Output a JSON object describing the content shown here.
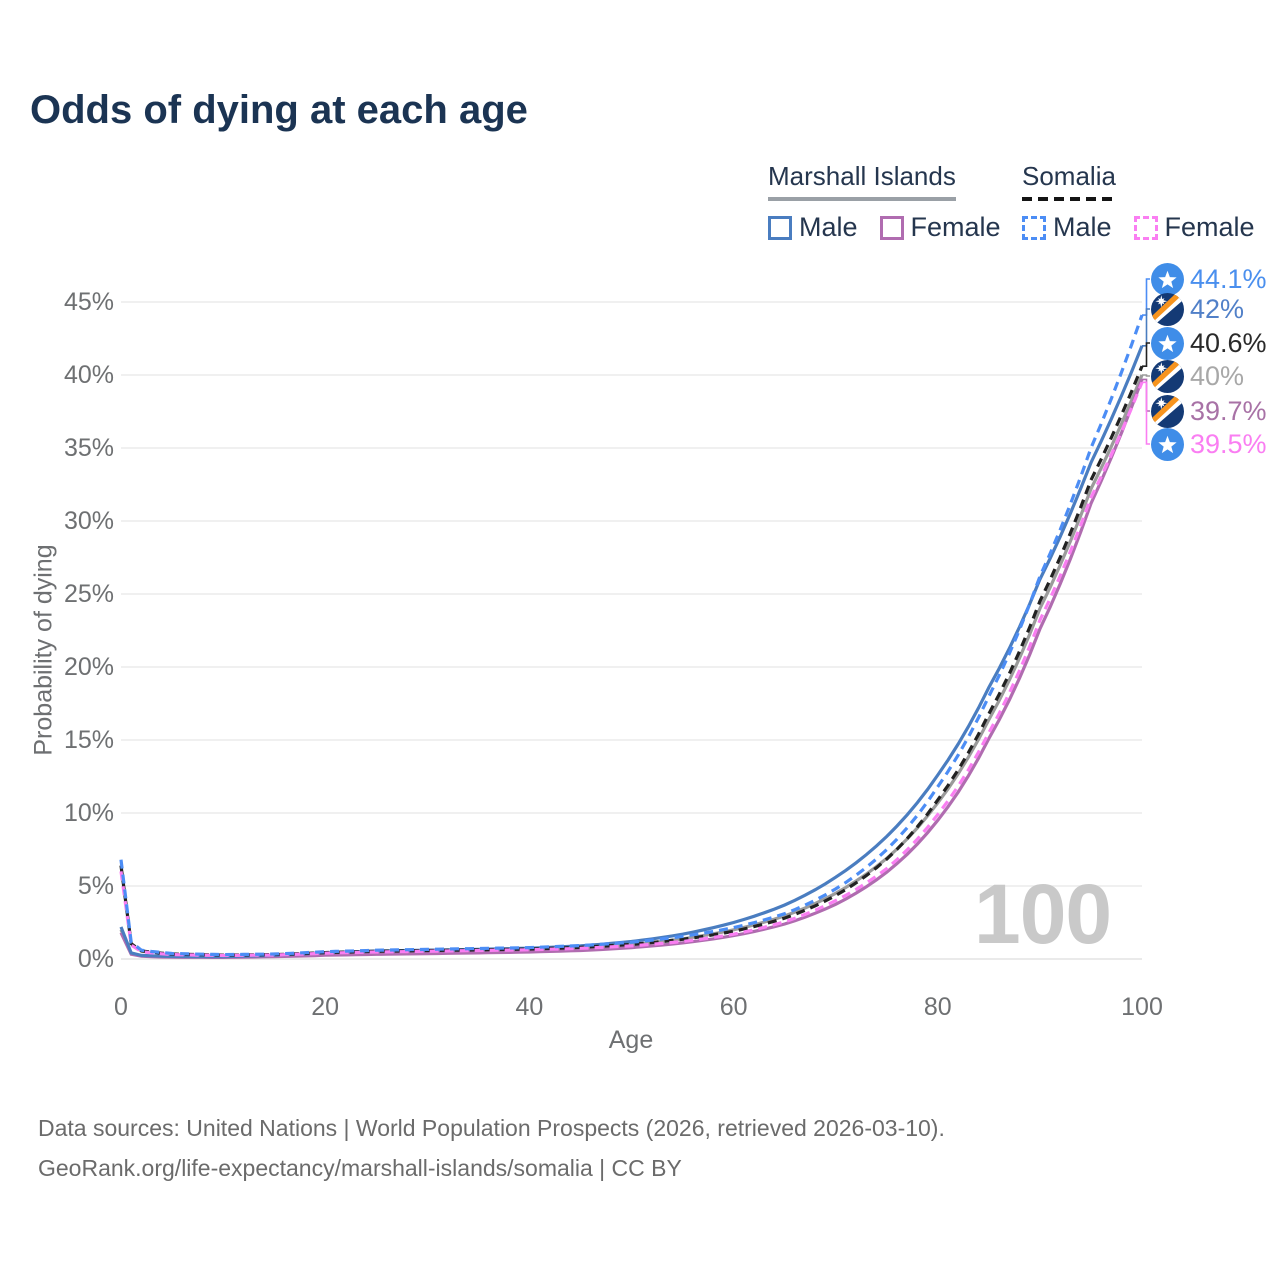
{
  "title": "Odds of dying at each age",
  "watermark": "100",
  "legend": {
    "groups": [
      {
        "label": "Marshall Islands",
        "line_style": "solid",
        "underline_color": "#9aa0a6",
        "items": [
          {
            "label": "Male",
            "color": "#4a7dc0"
          },
          {
            "label": "Female",
            "color": "#b06cb0"
          }
        ]
      },
      {
        "label": "Somalia",
        "line_style": "dashed",
        "underline_color": "#141414",
        "items": [
          {
            "label": "Male",
            "color": "#4c8df5"
          },
          {
            "label": "Female",
            "color": "#fa7ef2"
          }
        ]
      }
    ]
  },
  "chart_data": {
    "type": "line",
    "title": "Odds of dying at each age",
    "xlabel": "Age",
    "ylabel": "Probability of dying",
    "xlim": [
      0,
      100
    ],
    "ylim": [
      0,
      46
    ],
    "x_tick_values": [
      0,
      20,
      40,
      60,
      80,
      100
    ],
    "y_tick_values": [
      0,
      5,
      10,
      15,
      20,
      25,
      30,
      35,
      40,
      45
    ],
    "y_tick_labels": [
      "0%",
      "5%",
      "10%",
      "15%",
      "20%",
      "25%",
      "30%",
      "35%",
      "40%",
      "45%"
    ],
    "grid": "horizontal",
    "legend_position": "top-right",
    "series": [
      {
        "name": "Marshall Islands Both",
        "country": "Marshall Islands",
        "sex": "both",
        "color": "#9b9b9b",
        "dash": false,
        "end_value_pct": 40.0,
        "points": [
          [
            0,
            2.0
          ],
          [
            1,
            0.38
          ],
          [
            2,
            0.22
          ],
          [
            5,
            0.15
          ],
          [
            10,
            0.14
          ],
          [
            15,
            0.21
          ],
          [
            20,
            0.35
          ],
          [
            25,
            0.44
          ],
          [
            30,
            0.49
          ],
          [
            35,
            0.54
          ],
          [
            40,
            0.6
          ],
          [
            45,
            0.73
          ],
          [
            50,
            0.97
          ],
          [
            55,
            1.38
          ],
          [
            60,
            2.0
          ],
          [
            65,
            2.95
          ],
          [
            70,
            4.5
          ],
          [
            75,
            6.9
          ],
          [
            80,
            10.7
          ],
          [
            85,
            16.4
          ],
          [
            90,
            24.0
          ],
          [
            95,
            32.2
          ],
          [
            100,
            40.0
          ]
        ]
      },
      {
        "name": "Marshall Islands Female",
        "country": "Marshall Islands",
        "sex": "female",
        "color": "#b06cb0",
        "dash": false,
        "end_value_pct": 39.7,
        "points": [
          [
            0,
            1.8
          ],
          [
            1,
            0.33
          ],
          [
            2,
            0.19
          ],
          [
            5,
            0.12
          ],
          [
            10,
            0.11
          ],
          [
            15,
            0.16
          ],
          [
            20,
            0.26
          ],
          [
            25,
            0.32
          ],
          [
            30,
            0.37
          ],
          [
            35,
            0.42
          ],
          [
            40,
            0.48
          ],
          [
            45,
            0.58
          ],
          [
            50,
            0.78
          ],
          [
            55,
            1.1
          ],
          [
            60,
            1.6
          ],
          [
            65,
            2.4
          ],
          [
            70,
            3.75
          ],
          [
            75,
            5.95
          ],
          [
            80,
            9.5
          ],
          [
            85,
            15.1
          ],
          [
            90,
            22.6
          ],
          [
            95,
            31.2
          ],
          [
            100,
            39.7
          ]
        ]
      },
      {
        "name": "Marshall Islands Male",
        "country": "Marshall Islands",
        "sex": "male",
        "color": "#4a7dc0",
        "dash": false,
        "end_value_pct": 42.0,
        "points": [
          [
            0,
            2.2
          ],
          [
            1,
            0.42
          ],
          [
            2,
            0.25
          ],
          [
            5,
            0.17
          ],
          [
            10,
            0.16
          ],
          [
            15,
            0.26
          ],
          [
            20,
            0.44
          ],
          [
            25,
            0.55
          ],
          [
            30,
            0.6
          ],
          [
            35,
            0.66
          ],
          [
            40,
            0.74
          ],
          [
            45,
            0.9
          ],
          [
            50,
            1.2
          ],
          [
            55,
            1.7
          ],
          [
            60,
            2.5
          ],
          [
            65,
            3.7
          ],
          [
            70,
            5.6
          ],
          [
            75,
            8.4
          ],
          [
            80,
            12.6
          ],
          [
            85,
            18.6
          ],
          [
            90,
            26.0
          ],
          [
            95,
            34.0
          ],
          [
            100,
            42.0
          ]
        ]
      },
      {
        "name": "Somalia Both",
        "country": "Somalia",
        "sex": "both",
        "color": "#222222",
        "dash": true,
        "end_value_pct": 40.6,
        "points": [
          [
            0,
            6.4
          ],
          [
            1,
            1.05
          ],
          [
            2,
            0.55
          ],
          [
            5,
            0.34
          ],
          [
            10,
            0.27
          ],
          [
            15,
            0.3
          ],
          [
            20,
            0.44
          ],
          [
            25,
            0.53
          ],
          [
            30,
            0.58
          ],
          [
            35,
            0.63
          ],
          [
            40,
            0.68
          ],
          [
            45,
            0.8
          ],
          [
            50,
            1.0
          ],
          [
            55,
            1.35
          ],
          [
            60,
            1.9
          ],
          [
            65,
            2.8
          ],
          [
            70,
            4.35
          ],
          [
            75,
            6.85
          ],
          [
            80,
            10.9
          ],
          [
            85,
            16.8
          ],
          [
            90,
            24.5
          ],
          [
            95,
            32.8
          ],
          [
            100,
            40.6
          ]
        ]
      },
      {
        "name": "Somalia Female",
        "country": "Somalia",
        "sex": "female",
        "color": "#fa7ef2",
        "dash": true,
        "end_value_pct": 39.5,
        "points": [
          [
            0,
            6.0
          ],
          [
            1,
            0.95
          ],
          [
            2,
            0.5
          ],
          [
            5,
            0.3
          ],
          [
            10,
            0.24
          ],
          [
            15,
            0.27
          ],
          [
            20,
            0.4
          ],
          [
            25,
            0.48
          ],
          [
            30,
            0.53
          ],
          [
            35,
            0.58
          ],
          [
            40,
            0.63
          ],
          [
            45,
            0.73
          ],
          [
            50,
            0.9
          ],
          [
            55,
            1.2
          ],
          [
            60,
            1.7
          ],
          [
            65,
            2.55
          ],
          [
            70,
            4.0
          ],
          [
            75,
            6.2
          ],
          [
            80,
            9.9
          ],
          [
            85,
            15.5
          ],
          [
            90,
            23.2
          ],
          [
            95,
            31.6
          ],
          [
            100,
            39.5
          ]
        ]
      },
      {
        "name": "Somalia Male",
        "country": "Somalia",
        "sex": "male",
        "color": "#4c8df5",
        "dash": true,
        "end_value_pct": 44.1,
        "points": [
          [
            0,
            6.8
          ],
          [
            1,
            1.15
          ],
          [
            2,
            0.6
          ],
          [
            5,
            0.38
          ],
          [
            10,
            0.3
          ],
          [
            15,
            0.34
          ],
          [
            20,
            0.5
          ],
          [
            25,
            0.6
          ],
          [
            30,
            0.66
          ],
          [
            35,
            0.72
          ],
          [
            40,
            0.78
          ],
          [
            45,
            0.92
          ],
          [
            50,
            1.15
          ],
          [
            55,
            1.55
          ],
          [
            60,
            2.15
          ],
          [
            65,
            3.1
          ],
          [
            70,
            4.8
          ],
          [
            75,
            7.5
          ],
          [
            80,
            11.8
          ],
          [
            85,
            18.0
          ],
          [
            90,
            26.2
          ],
          [
            95,
            35.0
          ],
          [
            100,
            44.1
          ]
        ]
      }
    ],
    "end_labels": [
      {
        "text": "44.1%",
        "flag": "somalia",
        "color": "#4a8fee",
        "series": "Somalia Male"
      },
      {
        "text": "42%",
        "flag": "marshall-islands",
        "color": "#5180c8",
        "series": "Marshall Islands Male"
      },
      {
        "text": "40.6%",
        "flag": "somalia",
        "color": "#2a2a2a",
        "series": "Somalia Both"
      },
      {
        "text": "40%",
        "flag": "marshall-islands",
        "color": "#a8a8a8",
        "series": "Marshall Islands Both"
      },
      {
        "text": "39.7%",
        "flag": "marshall-islands",
        "color": "#a872a6",
        "series": "Marshall Islands Female"
      },
      {
        "text": "39.5%",
        "flag": "somalia",
        "color": "#fa7ef2",
        "series": "Somalia Female"
      }
    ]
  },
  "footer": {
    "line1": "Data sources: United Nations | World Population Prospects (2026, retrieved 2026-03-10).",
    "line2": "GeoRank.org/life-expectancy/marshall-islands/somalia | CC BY"
  }
}
